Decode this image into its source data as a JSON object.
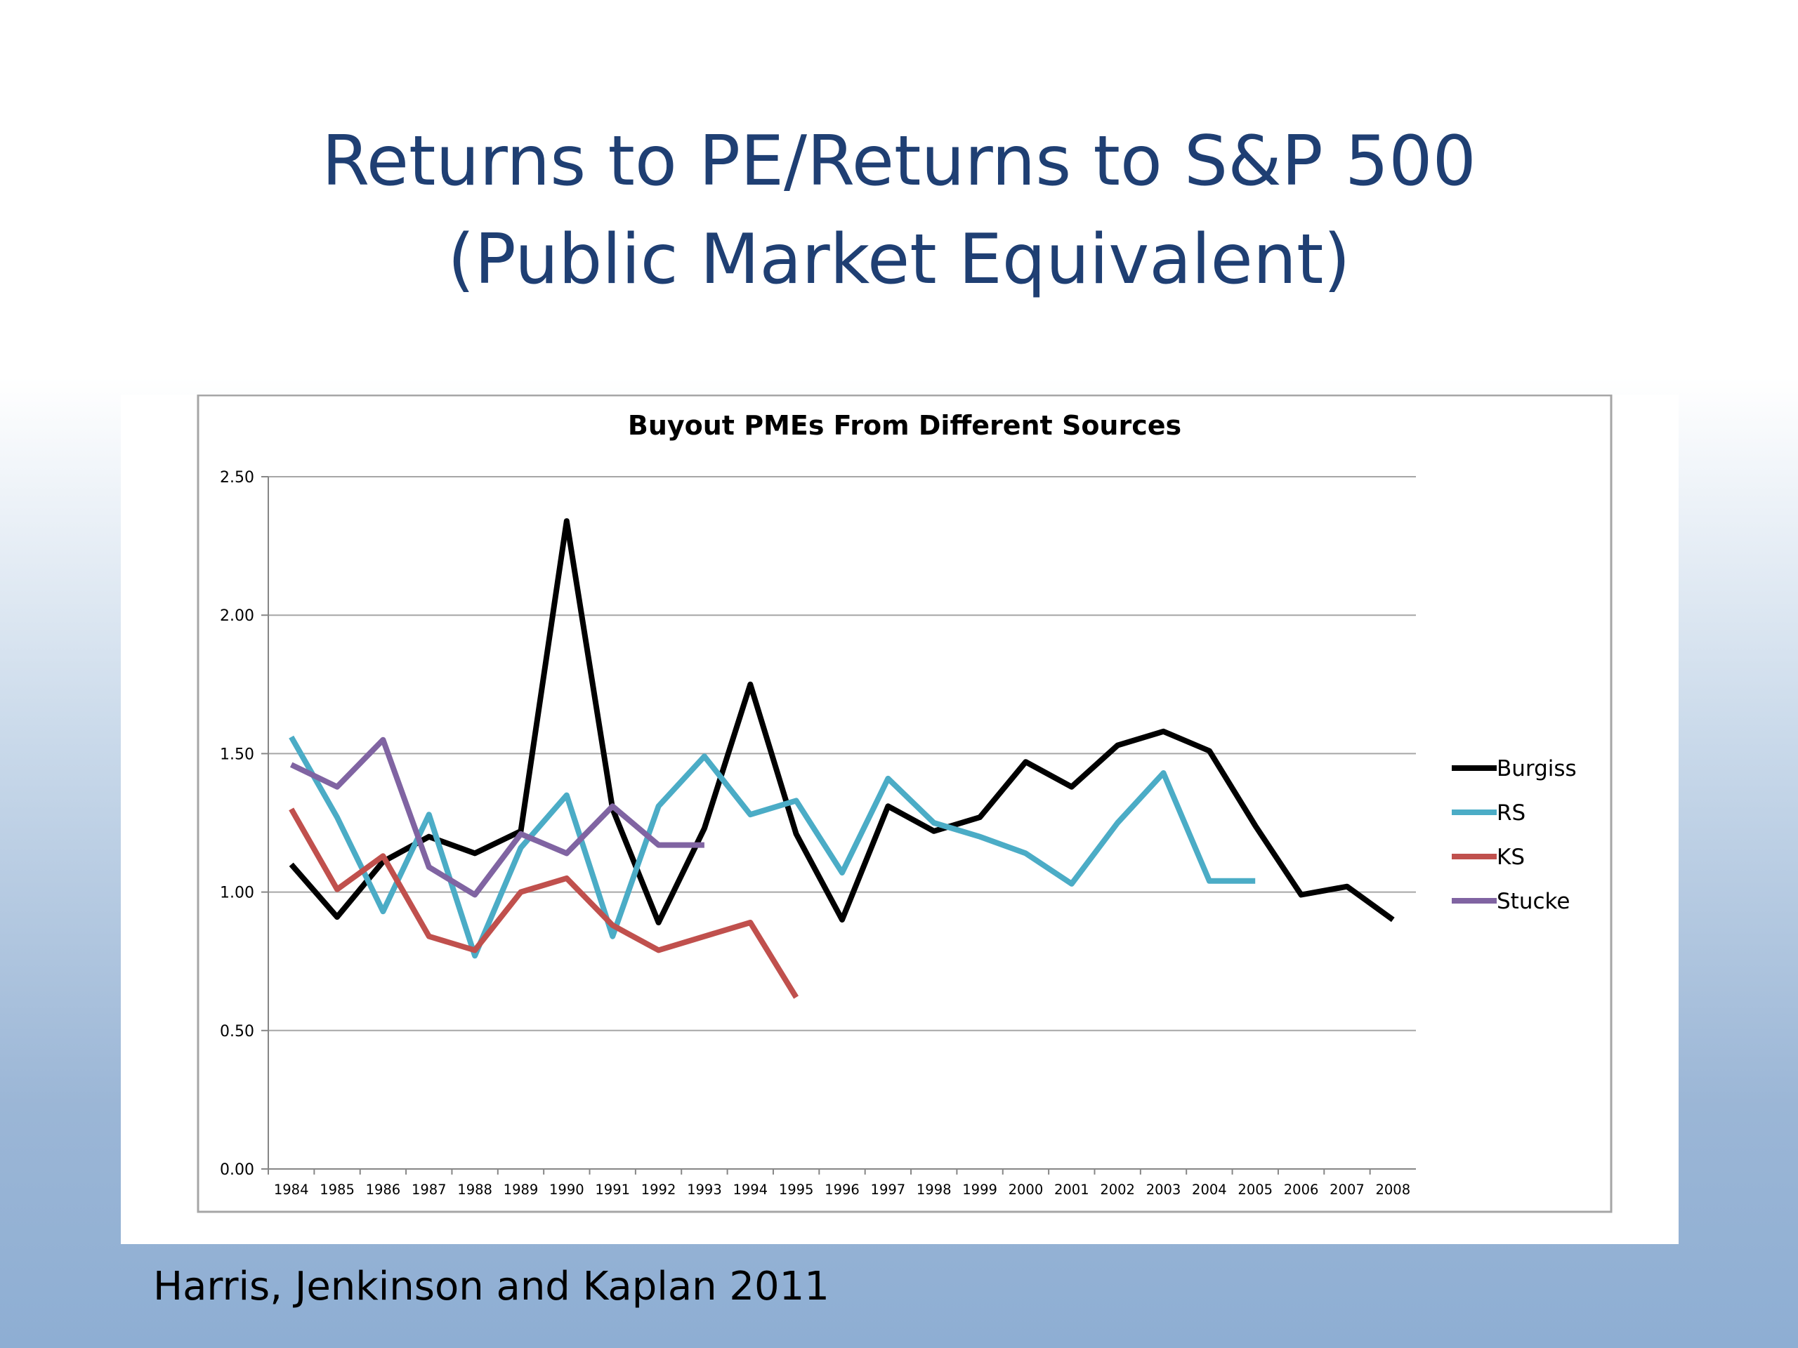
{
  "slide": {
    "title_line1": "Returns to PE/Returns to S&P 500",
    "title_line2": "(Public Market Equivalent)",
    "citation": "Harris, Jenkinson and Kaplan 2011"
  },
  "chart_data": {
    "type": "line",
    "title": "Buyout PMEs From Different Sources",
    "xlabel": "",
    "ylabel": "",
    "categories": [
      "1984",
      "1985",
      "1986",
      "1987",
      "1988",
      "1989",
      "1990",
      "1991",
      "1992",
      "1993",
      "1994",
      "1995",
      "1996",
      "1997",
      "1998",
      "1999",
      "2000",
      "2001",
      "2002",
      "2003",
      "2004",
      "2005",
      "2006",
      "2007",
      "2008"
    ],
    "ylim": [
      0,
      2.5
    ],
    "yticks": [
      "0.00",
      "0.50",
      "1.00",
      "1.50",
      "2.00",
      "2.50"
    ],
    "grid": true,
    "legend_position": "right",
    "series": [
      {
        "name": "Burgiss",
        "color": "#000000",
        "values": [
          1.1,
          0.91,
          1.11,
          1.2,
          1.14,
          1.22,
          2.34,
          1.3,
          0.89,
          1.23,
          1.75,
          1.21,
          0.9,
          1.31,
          1.22,
          1.27,
          1.47,
          1.38,
          1.53,
          1.58,
          1.51,
          1.24,
          0.99,
          1.02,
          0.9
        ]
      },
      {
        "name": "RS",
        "color": "#4bacc6",
        "values": [
          1.56,
          1.27,
          0.93,
          1.28,
          0.77,
          1.16,
          1.35,
          0.84,
          1.31,
          1.49,
          1.28,
          1.33,
          1.07,
          1.41,
          1.25,
          1.2,
          1.14,
          1.03,
          1.25,
          1.43,
          1.04,
          1.04,
          null,
          null,
          null
        ]
      },
      {
        "name": "KS",
        "color": "#c0504d",
        "values": [
          1.3,
          1.01,
          1.13,
          0.84,
          0.79,
          1.0,
          1.05,
          0.88,
          0.79,
          0.84,
          0.89,
          0.62,
          null,
          null,
          null,
          null,
          null,
          null,
          null,
          null,
          null,
          null,
          null,
          null,
          null
        ]
      },
      {
        "name": "Stucke",
        "color": "#8064a2",
        "values": [
          1.46,
          1.38,
          1.55,
          1.09,
          0.99,
          1.21,
          1.14,
          1.31,
          1.17,
          1.17,
          null,
          null,
          null,
          null,
          null,
          null,
          null,
          null,
          null,
          null,
          null,
          null,
          null,
          null,
          null
        ]
      }
    ]
  }
}
